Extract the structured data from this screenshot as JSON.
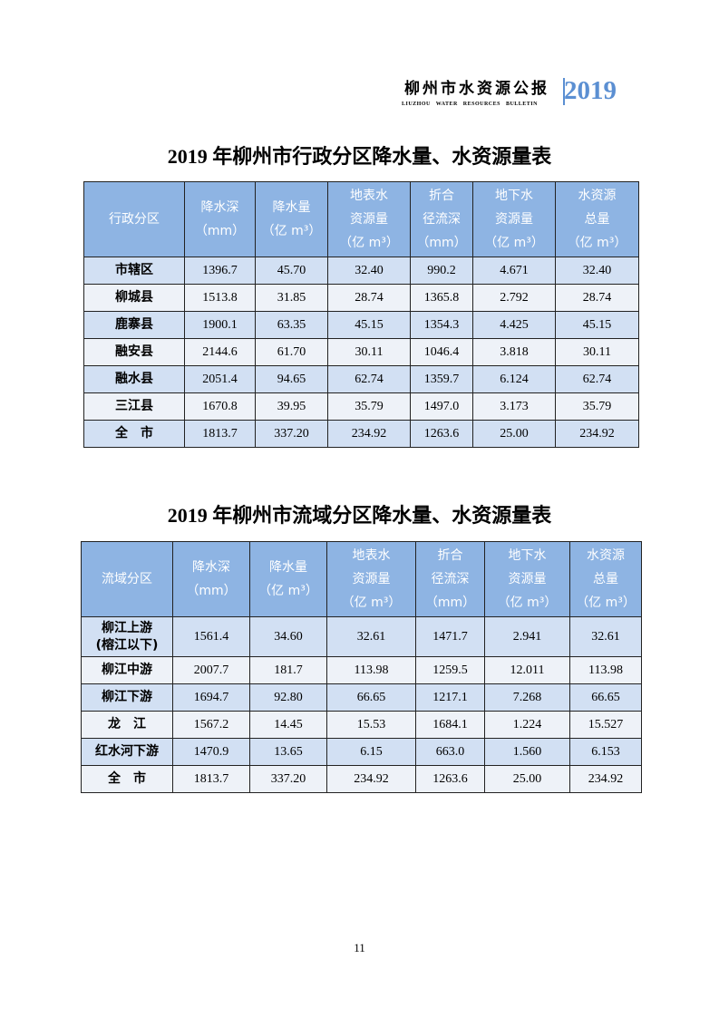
{
  "header": {
    "title_cn": "柳州市水资源公报",
    "title_en": "LIUZHOU WATER RESOURCES BULLETIN",
    "year": "2019",
    "accent": "#5b8fd2"
  },
  "table1": {
    "title": "2019 年柳州市行政分区降水量、水资源量表",
    "columns": [
      [
        "行政分区"
      ],
      [
        "降水深",
        "（mm）"
      ],
      [
        "降水量",
        "（亿 m³）"
      ],
      [
        "地表水",
        "资源量",
        "（亿 m³）"
      ],
      [
        "折合",
        "径流深",
        "（mm）"
      ],
      [
        "地下水",
        "资源量",
        "（亿 m³）"
      ],
      [
        "水资源",
        "总量",
        "（亿 m³）"
      ]
    ],
    "rows": [
      [
        "市辖区",
        "1396.7",
        "45.70",
        "32.40",
        "990.2",
        "4.671",
        "32.40"
      ],
      [
        "柳城县",
        "1513.8",
        "31.85",
        "28.74",
        "1365.8",
        "2.792",
        "28.74"
      ],
      [
        "鹿寨县",
        "1900.1",
        "63.35",
        "45.15",
        "1354.3",
        "4.425",
        "45.15"
      ],
      [
        "融安县",
        "2144.6",
        "61.70",
        "30.11",
        "1046.4",
        "3.818",
        "30.11"
      ],
      [
        "融水县",
        "2051.4",
        "94.65",
        "62.74",
        "1359.7",
        "6.124",
        "62.74"
      ],
      [
        "三江县",
        "1670.8",
        "39.95",
        "35.79",
        "1497.0",
        "3.173",
        "35.79"
      ],
      [
        "全　市",
        "1813.7",
        "337.20",
        "234.92",
        "1263.6",
        "25.00",
        "234.92"
      ]
    ]
  },
  "table2": {
    "title": "2019 年柳州市流域分区降水量、水资源量表",
    "columns": [
      [
        "流域分区"
      ],
      [
        "降水深",
        "（mm）"
      ],
      [
        "降水量",
        "（亿 m³）"
      ],
      [
        "地表水",
        "资源量",
        "（亿 m³）"
      ],
      [
        "折合",
        "径流深",
        "（mm）"
      ],
      [
        "地下水",
        "资源量",
        "（亿 m³）"
      ],
      [
        "水资源",
        "总量",
        "（亿 m³）"
      ]
    ],
    "rows": [
      [
        "柳江上游\n(榕江以下)",
        "1561.4",
        "34.60",
        "32.61",
        "1471.7",
        "2.941",
        "32.61"
      ],
      [
        "柳江中游",
        "2007.7",
        "181.7",
        "113.98",
        "1259.5",
        "12.011",
        "113.98"
      ],
      [
        "柳江下游",
        "1694.7",
        "92.80",
        "66.65",
        "1217.1",
        "7.268",
        "66.65"
      ],
      [
        "龙　江",
        "1567.2",
        "14.45",
        "15.53",
        "1684.1",
        "1.224",
        "15.527"
      ],
      [
        "红水河下游",
        "1470.9",
        "13.65",
        "6.15",
        "663.0",
        "1.560",
        "6.153"
      ],
      [
        "全　市",
        "1813.7",
        "337.20",
        "234.92",
        "1263.6",
        "25.00",
        "234.92"
      ]
    ]
  },
  "page_number": "11"
}
